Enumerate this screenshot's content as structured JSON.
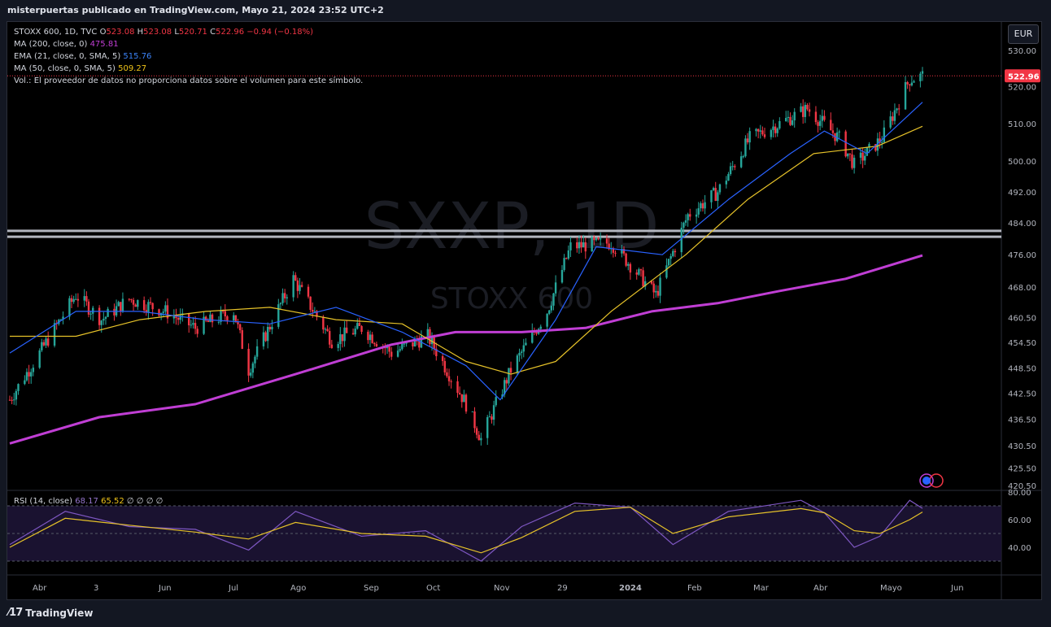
{
  "header": {
    "publisher_line": "misterpuertas publicado en TradingView.com, Mayo 21, 2024 23:52 UTC+2"
  },
  "legend": {
    "symbol_prefix": "STOXX 600, 1D, TVC",
    "o_label": "O",
    "o_value": "523.08",
    "h_label": "H",
    "h_value": "523.08",
    "l_label": "L",
    "l_value": "520.71",
    "c_label": "C",
    "c_value": "522.96",
    "change": "−0.94 (−0.18%)",
    "ma200_label": "MA (200, close, 0)",
    "ma200_value": "475.81",
    "ema21_label": "EMA (21, close, 0, SMA, 5)",
    "ema21_value": "515.76",
    "ma50_label": "MA (50, close, 0, SMA, 5)",
    "ma50_value": "509.27",
    "volume_note": "Vol.: El proveedor de datos no proporciona datos sobre el volumen para este símbolo."
  },
  "currency": "EUR",
  "watermark": {
    "ticker": "SXXP, 1D",
    "name": "STOXX 600"
  },
  "rsi_legend": {
    "label": "RSI (14, close)",
    "value1": "68.17",
    "value2": "65.52",
    "extras": "∅ ∅ ∅ ∅"
  },
  "footer": {
    "brand": "TradingView",
    "logo_icon": "tradingview-logo-icon"
  },
  "colors": {
    "up": "#26a69a",
    "down": "#f23645",
    "ma200": "#c03ed4",
    "ema21": "#2962ff",
    "ma50": "#e6c229",
    "rsi": "#7e57c2",
    "rsi_ma": "#e6c229"
  },
  "chart_data": {
    "type": "line",
    "title": "",
    "instrument": "STOXX 600 daily candlesticks",
    "price_axis": {
      "ticks": [
        530.0,
        520.0,
        510.0,
        500.0,
        492.0,
        484.0,
        476.0,
        468.0,
        460.5,
        454.5,
        448.5,
        442.5,
        436.5,
        430.5,
        425.5,
        420.5
      ],
      "tick_labels": [
        "530.00",
        "520.00",
        "510.00",
        "500.00",
        "492.00",
        "484.00",
        "476.00",
        "468.00",
        "460.50",
        "454.50",
        "448.50",
        "442.50",
        "436.50",
        "430.50",
        "425.50",
        "420.50"
      ],
      "last_price": 522.96,
      "last_price_label": "522.96",
      "scale": "log"
    },
    "x_axis": {
      "tick_labels": [
        "Abr",
        "3",
        "Jun",
        "Jul",
        "Ago",
        "Sep",
        "Oct",
        "Nov",
        "29",
        "2024",
        "Feb",
        "Mar",
        "Abr",
        "Mayo",
        "Jun"
      ]
    },
    "horizontal_levels": [
      482.0,
      480.5
    ],
    "series": [
      {
        "name": "STOXX 600",
        "x": [
          "2023-03-20",
          "2023-04-03",
          "2023-04-20",
          "2023-05-02",
          "2023-05-15",
          "2023-06-01",
          "2023-06-15",
          "2023-07-03",
          "2023-07-10",
          "2023-07-31",
          "2023-08-18",
          "2023-09-01",
          "2023-09-15",
          "2023-10-02",
          "2023-10-20",
          "2023-10-27",
          "2023-11-10",
          "2023-11-27",
          "2023-12-08",
          "2023-12-27",
          "2024-01-17",
          "2024-02-01",
          "2024-02-15",
          "2024-03-01",
          "2024-03-15",
          "2024-03-28",
          "2024-04-12",
          "2024-04-19",
          "2024-05-02",
          "2024-05-15",
          "2024-05-21"
        ],
        "y": [
          441,
          452,
          466,
          460,
          465,
          462,
          458,
          462,
          448,
          470,
          455,
          458,
          452,
          456,
          440,
          432,
          448,
          462,
          478,
          479,
          466,
          486,
          492,
          506,
          510,
          514,
          506,
          499,
          506,
          522,
          522.96
        ]
      },
      {
        "name": "EMA (21, close, 0, SMA, 5)",
        "x": [
          "2023-03-20",
          "2023-04-20",
          "2023-05-20",
          "2023-06-20",
          "2023-07-20",
          "2023-08-20",
          "2023-09-20",
          "2023-10-20",
          "2023-11-05",
          "2023-12-01",
          "2023-12-20",
          "2024-01-20",
          "2024-02-20",
          "2024-03-20",
          "2024-04-05",
          "2024-04-25",
          "2024-05-21"
        ],
        "y": [
          452,
          462,
          462,
          460,
          459,
          463,
          457,
          449,
          441,
          460,
          478,
          476,
          490,
          502,
          508,
          502,
          515.76
        ]
      },
      {
        "name": "MA (50, close, 0, SMA, 5)",
        "x": [
          "2023-03-20",
          "2023-04-20",
          "2023-05-20",
          "2023-06-20",
          "2023-07-20",
          "2023-08-20",
          "2023-09-20",
          "2023-10-20",
          "2023-11-10",
          "2023-12-01",
          "2023-12-27",
          "2024-01-31",
          "2024-02-29",
          "2024-03-31",
          "2024-04-30",
          "2024-05-21"
        ],
        "y": [
          456,
          456,
          460,
          462,
          463,
          460,
          459,
          450,
          447,
          450,
          462,
          476,
          490,
          502,
          504,
          509.27
        ]
      },
      {
        "name": "MA (200, close, 0)",
        "x": [
          "2023-03-20",
          "2023-05-01",
          "2023-06-15",
          "2023-08-01",
          "2023-09-15",
          "2023-10-15",
          "2023-11-15",
          "2023-12-15",
          "2024-01-15",
          "2024-02-15",
          "2024-03-15",
          "2024-04-15",
          "2024-05-21"
        ],
        "y": [
          431,
          437,
          440,
          447,
          454,
          457,
          457,
          458,
          462,
          464,
          467,
          470,
          475.81
        ]
      }
    ],
    "rsi": {
      "label": "RSI (14, close)",
      "y_ticks": [
        80.0,
        60.0,
        40.0
      ],
      "y_tick_labels": [
        "80.00",
        "60.00",
        "40.00"
      ],
      "bands": [
        70,
        50,
        30
      ],
      "ylim": [
        20,
        80
      ],
      "x": [
        "2023-03-20",
        "2023-04-15",
        "2023-05-15",
        "2023-06-15",
        "2023-07-10",
        "2023-08-01",
        "2023-09-01",
        "2023-10-01",
        "2023-10-27",
        "2023-11-15",
        "2023-12-10",
        "2024-01-05",
        "2024-01-25",
        "2024-02-20",
        "2024-03-25",
        "2024-04-05",
        "2024-04-19",
        "2024-05-01",
        "2024-05-15",
        "2024-05-21"
      ],
      "values": [
        42,
        66,
        55,
        53,
        38,
        66,
        48,
        52,
        30,
        55,
        72,
        69,
        42,
        66,
        74,
        65,
        40,
        48,
        74,
        68.17
      ],
      "ma_values": [
        40,
        61,
        56,
        51,
        46,
        58,
        50,
        48,
        36,
        47,
        66,
        69,
        50,
        62,
        68,
        65,
        52,
        50,
        60,
        65.52
      ]
    }
  }
}
